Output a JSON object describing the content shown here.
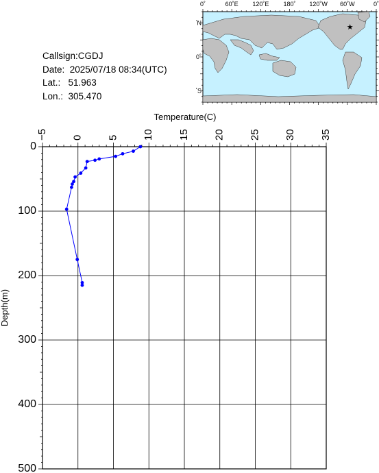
{
  "info": {
    "callsign_line": "Callsign:CGDJ",
    "date_line": "Date:  2025/07/18 08:34(UTC)",
    "lat_line": "Lat.:   51.963",
    "lon_line": "Lon.:  305.470"
  },
  "map": {
    "top_ticks": [
      "0˚",
      "60˚E",
      "120˚E",
      "180˚",
      "120˚W",
      "60˚W",
      "0˚"
    ],
    "side_ticks": [
      "60˚N",
      "0˚",
      "60˚S"
    ],
    "ocean_color": "#c6f1ff",
    "land_color": "#c0c0c0",
    "marker_color": "#ff0000",
    "marker_lon": 305.47,
    "marker_lat": 51.963
  },
  "chart_data": {
    "type": "line",
    "title": "",
    "xlabel": "Temperature(C)",
    "ylabel": "Depth(m)",
    "xlim": [
      -5,
      35
    ],
    "ylim": [
      500,
      0
    ],
    "x_ticks": [
      -5,
      0,
      5,
      10,
      15,
      20,
      25,
      30,
      35
    ],
    "x_tick_labels": [
      "−5",
      "0",
      "5",
      "10",
      "15",
      "20",
      "25",
      "30",
      "35"
    ],
    "y_ticks": [
      0,
      100,
      200,
      300,
      400,
      500
    ],
    "y_tick_labels": [
      "0",
      "100",
      "200",
      "300",
      "400",
      "500"
    ],
    "grid": true,
    "series_color": "#0000ff",
    "points": [
      {
        "temp": 8.8,
        "depth": 0
      },
      {
        "temp": 7.8,
        "depth": 7
      },
      {
        "temp": 6.3,
        "depth": 11
      },
      {
        "temp": 5.3,
        "depth": 15
      },
      {
        "temp": 3.0,
        "depth": 19
      },
      {
        "temp": 2.4,
        "depth": 21
      },
      {
        "temp": 1.3,
        "depth": 23
      },
      {
        "temp": 1.1,
        "depth": 33
      },
      {
        "temp": 0.4,
        "depth": 41
      },
      {
        "temp": -0.4,
        "depth": 47
      },
      {
        "temp": -0.6,
        "depth": 54
      },
      {
        "temp": -0.8,
        "depth": 58
      },
      {
        "temp": -0.9,
        "depth": 63
      },
      {
        "temp": -1.6,
        "depth": 97
      },
      {
        "temp": -0.1,
        "depth": 175
      },
      {
        "temp": 0.6,
        "depth": 211
      },
      {
        "temp": 0.6,
        "depth": 215
      }
    ]
  }
}
